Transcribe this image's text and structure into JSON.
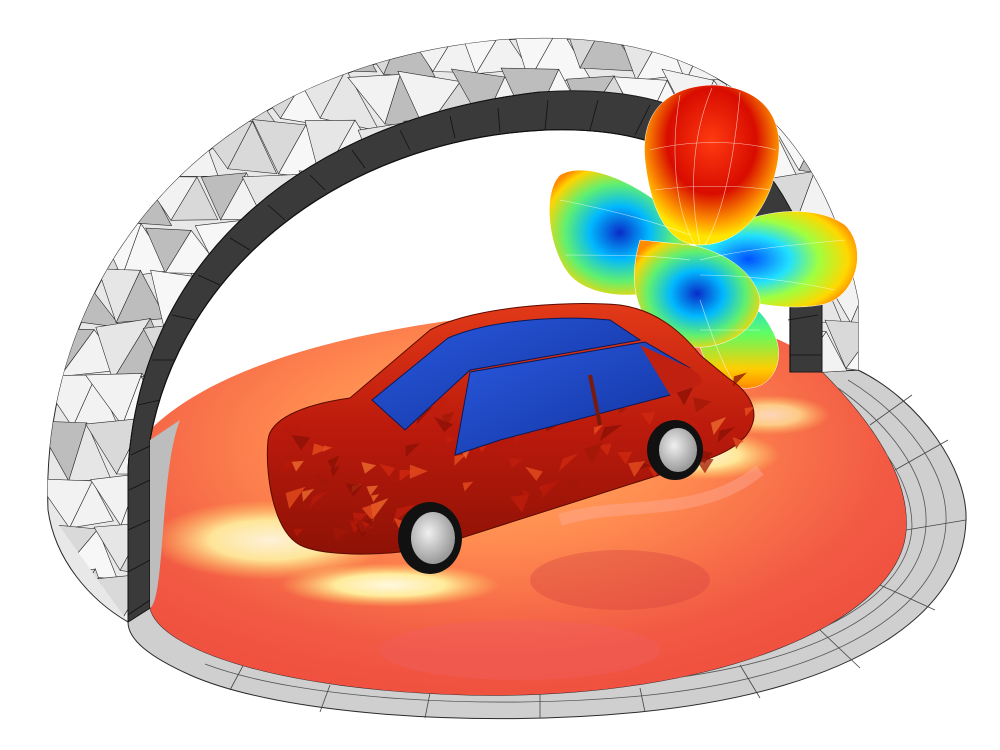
{
  "scene": {
    "subject": "simulation-render",
    "colors": {
      "background": "#ffffff",
      "dome_face": "#e6e6e6",
      "dome_face_light": "#f2f2f2",
      "dome_face_dark": "#bdbdbd",
      "mesh_line": "#2a2a2a",
      "pml_layer": "#3a3a3a",
      "ring_outer": "#c8c8c8",
      "ground_red": "#f04a3a",
      "ground_orange": "#ff8a50",
      "ground_yellow": "#ffe680",
      "car_body": "#c0200f",
      "car_window": "#1846c8",
      "tire": "#111111",
      "rim": "#cfcfcf"
    },
    "pattern_palette": [
      "#b00000",
      "#ff2000",
      "#ff8c00",
      "#ffe600",
      "#80ff40",
      "#00e0ff",
      "#0050ff",
      "#001aa0"
    ]
  }
}
